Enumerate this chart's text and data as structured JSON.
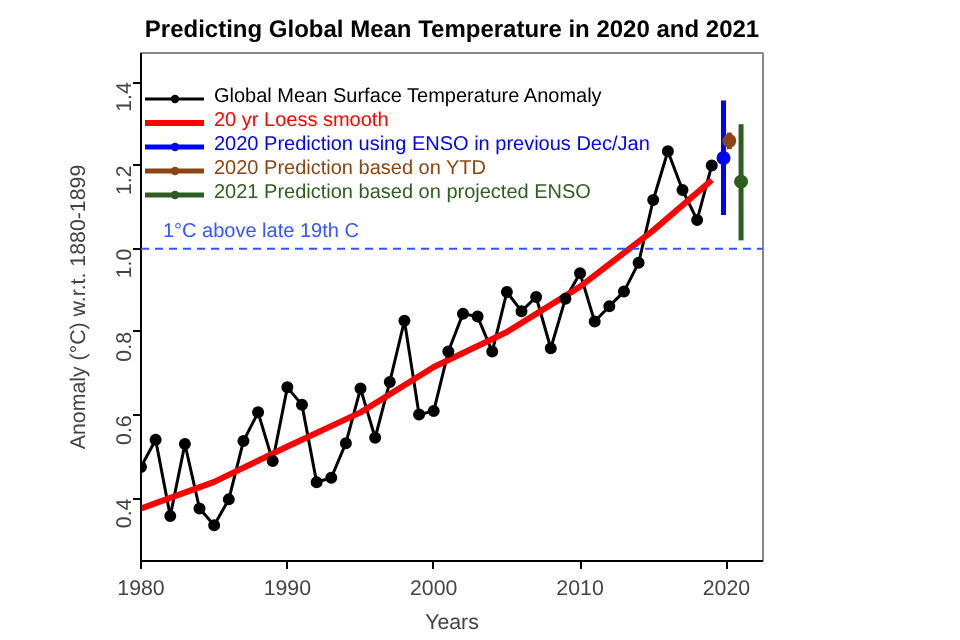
{
  "chart_data": {
    "type": "line",
    "title": "Predicting Global Mean Temperature in 2020 and 2021",
    "xlabel": "Years",
    "ylabel": "Anomaly (°C) w.r.t. 1880-1899",
    "xlim": [
      1980,
      2022.5
    ],
    "ylim": [
      0.25,
      1.47
    ],
    "xticks": [
      1980,
      1990,
      2000,
      2010,
      2020
    ],
    "yticks": [
      0.4,
      0.6,
      0.8,
      {
        "value": 1.0,
        "label": "1.0"
      },
      1.2,
      1.4
    ],
    "grid": false,
    "legend": "top left",
    "series": [
      {
        "name": "Global Mean Surface Temperature Anomaly",
        "color": "#000000",
        "marker": "circle",
        "x": [
          1980,
          1981,
          1982,
          1983,
          1984,
          1985,
          1986,
          1987,
          1988,
          1989,
          1990,
          1991,
          1992,
          1993,
          1994,
          1995,
          1996,
          1997,
          1998,
          1999,
          2000,
          2001,
          2002,
          2003,
          2004,
          2005,
          2006,
          2007,
          2008,
          2009,
          2010,
          2011,
          2012,
          2013,
          2014,
          2015,
          2016,
          2017,
          2018,
          2019
        ],
        "values": [
          0.476,
          0.541,
          0.358,
          0.531,
          0.376,
          0.336,
          0.398,
          0.538,
          0.607,
          0.49,
          0.667,
          0.625,
          0.439,
          0.45,
          0.533,
          0.664,
          0.546,
          0.68,
          0.827,
          0.602,
          0.61,
          0.753,
          0.844,
          0.837,
          0.753,
          0.896,
          0.85,
          0.884,
          0.761,
          0.88,
          0.941,
          0.825,
          0.862,
          0.897,
          0.966,
          1.117,
          1.234,
          1.141,
          1.069,
          1.2
        ]
      },
      {
        "name": "20 yr Loess smooth",
        "color": "#ff0000",
        "marker": "none",
        "x": [
          1980,
          1985,
          1990,
          1995,
          2000,
          2005,
          2010,
          2015,
          2019
        ],
        "values": [
          0.376,
          0.44,
          0.525,
          0.607,
          0.716,
          0.8,
          0.909,
          1.044,
          1.165
        ]
      },
      {
        "name": "2020 Prediction using ENSO in previous Dec/Jan",
        "color": "#0000ff",
        "type": "scatter",
        "marker": "circle",
        "x": [
          2019.8
        ],
        "values": [
          1.218
        ],
        "errors": [
          [
            1.081,
            1.356
          ]
        ]
      },
      {
        "name": "2020 Prediction based on YTD",
        "color": "#8b4513",
        "type": "scatter",
        "marker": "circle",
        "x": [
          2020.2
        ],
        "values": [
          1.259
        ],
        "errors": [
          [
            1.239,
            1.279
          ]
        ]
      },
      {
        "name": "2021 Prediction based on projected ENSO",
        "color": "#2e5e1e",
        "type": "scatter",
        "marker": "circle",
        "x": [
          2021
        ],
        "values": [
          1.161
        ],
        "errors": [
          [
            1.02,
            1.299
          ]
        ]
      }
    ],
    "ref_lines": [
      {
        "axis": "y",
        "value": 1.0,
        "label": "1°C above late 19th C",
        "color": "#3355ff",
        "line_style": "dashed"
      }
    ]
  }
}
